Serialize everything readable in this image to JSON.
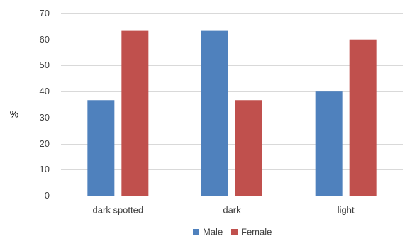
{
  "chart_data": {
    "type": "bar",
    "categories": [
      "dark spotted",
      "dark",
      "light"
    ],
    "series": [
      {
        "name": "Male",
        "values": [
          36.7,
          63.3,
          40.0
        ],
        "color": "#4f81bd"
      },
      {
        "name": "Female",
        "values": [
          63.3,
          36.7,
          60.0
        ],
        "color": "#c0504d"
      }
    ],
    "ylabel": "%",
    "xlabel": "",
    "ylim": [
      0,
      70
    ],
    "yticks": [
      0,
      10,
      20,
      30,
      40,
      50,
      60,
      70
    ],
    "grid": true,
    "legend_position": "bottom"
  }
}
